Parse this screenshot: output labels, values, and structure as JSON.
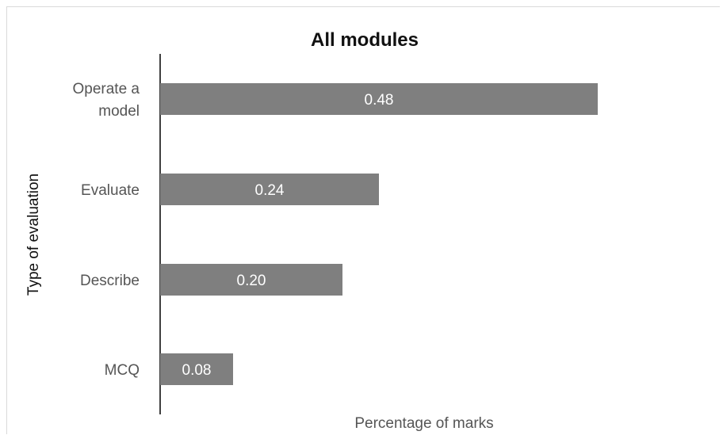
{
  "chart_data": {
    "type": "bar",
    "orientation": "horizontal",
    "title": "All modules",
    "xlabel": "Percentage of marks",
    "ylabel": "Type of evaluation",
    "categories": [
      [
        "Operate a",
        "model"
      ],
      [
        "Evaluate"
      ],
      [
        "Describe"
      ],
      [
        "MCQ"
      ]
    ],
    "values": [
      0.48,
      0.24,
      0.2,
      0.08
    ],
    "value_labels": [
      "0.48",
      "0.24",
      "0.20",
      "0.08"
    ],
    "xlim": [
      0,
      0.48
    ],
    "grid": false,
    "legend": "none",
    "bar_color": "#7f7f7f"
  }
}
